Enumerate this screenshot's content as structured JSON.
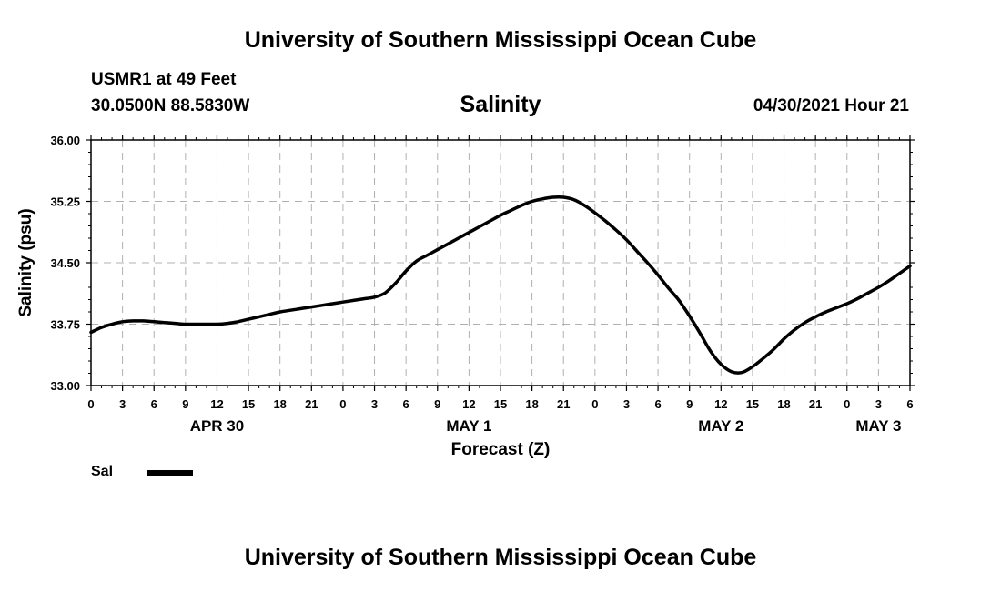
{
  "page": {
    "header_title": "University of Southern Mississippi Ocean Cube",
    "footer_title": "University of Southern Mississippi Ocean Cube",
    "station": "USMR1 at 49 Feet",
    "coords": "30.0500N  88.5830W",
    "parameter": "Salinity",
    "run": "04/30/2021 Hour 21"
  },
  "legend": {
    "label": "Sal"
  },
  "chart_data": {
    "type": "line",
    "title": "Salinity",
    "xlabel": "Forecast (Z)",
    "ylabel": "Salinity (psu)",
    "ylim": [
      33.0,
      36.0
    ],
    "yticks": [
      "33.00",
      "33.75",
      "34.50",
      "35.25",
      "36.00"
    ],
    "xlim": [
      0,
      78
    ],
    "xtick_labels": [
      "0",
      "3",
      "6",
      "9",
      "12",
      "15",
      "18",
      "21",
      "0",
      "3",
      "6",
      "9",
      "12",
      "15",
      "18",
      "21",
      "0",
      "3",
      "6",
      "9",
      "12",
      "15",
      "18",
      "21",
      "0",
      "3",
      "6"
    ],
    "day_labels": [
      {
        "label": "APR 30",
        "hour": 12
      },
      {
        "label": "MAY 1",
        "hour": 36
      },
      {
        "label": "MAY 2",
        "hour": 60
      },
      {
        "label": "MAY 3",
        "hour": 75
      }
    ],
    "series": [
      {
        "name": "Sal",
        "x": [
          0,
          1,
          2,
          3,
          4,
          5,
          6,
          7,
          8,
          9,
          10,
          11,
          12,
          13,
          14,
          15,
          16,
          17,
          18,
          19,
          20,
          21,
          22,
          23,
          24,
          25,
          26,
          27,
          28,
          29,
          30,
          31,
          32,
          33,
          34,
          35,
          36,
          37,
          38,
          39,
          40,
          41,
          42,
          43,
          44,
          45,
          46,
          47,
          48,
          49,
          50,
          51,
          52,
          53,
          54,
          55,
          56,
          57,
          58,
          59,
          60,
          61,
          62,
          63,
          64,
          65,
          66,
          67,
          68,
          69,
          70,
          71,
          72,
          73,
          74,
          75,
          76,
          77,
          78
        ],
        "values": [
          33.65,
          33.71,
          33.75,
          33.78,
          33.79,
          33.79,
          33.78,
          33.77,
          33.76,
          33.75,
          33.75,
          33.75,
          33.75,
          33.76,
          33.78,
          33.81,
          33.84,
          33.87,
          33.9,
          33.92,
          33.94,
          33.96,
          33.98,
          34.0,
          34.02,
          34.04,
          34.06,
          34.08,
          34.13,
          34.25,
          34.4,
          34.52,
          34.59,
          34.66,
          34.73,
          34.8,
          34.87,
          34.94,
          35.01,
          35.08,
          35.14,
          35.2,
          35.25,
          35.28,
          35.3,
          35.3,
          35.27,
          35.2,
          35.11,
          35.01,
          34.9,
          34.78,
          34.64,
          34.5,
          34.35,
          34.19,
          34.04,
          33.85,
          33.64,
          33.42,
          33.26,
          33.17,
          33.16,
          33.23,
          33.33,
          33.44,
          33.57,
          33.68,
          33.77,
          33.84,
          33.9,
          33.95,
          34.0,
          34.06,
          34.13,
          34.2,
          34.28,
          34.37,
          34.46
        ]
      }
    ]
  }
}
